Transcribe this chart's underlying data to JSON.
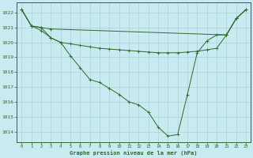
{
  "title": "Graphe pression niveau de la mer (hPa)",
  "bg_color": "#c8eaf0",
  "grid_color": "#a8d4d8",
  "line_color": "#2d6a2d",
  "xlim": [
    -0.5,
    23.5
  ],
  "ylim": [
    1013.3,
    1022.7
  ],
  "yticks": [
    1014,
    1015,
    1016,
    1017,
    1018,
    1019,
    1020,
    1021,
    1022
  ],
  "xticks": [
    0,
    1,
    2,
    3,
    4,
    5,
    6,
    7,
    8,
    9,
    10,
    11,
    12,
    13,
    14,
    15,
    16,
    17,
    18,
    19,
    20,
    21,
    22,
    23
  ],
  "series1": {
    "x": [
      0,
      1,
      2,
      3,
      21,
      22,
      23
    ],
    "y": [
      1022.2,
      1021.1,
      1021.0,
      1020.9,
      1020.5,
      1021.6,
      1022.2
    ]
  },
  "series2": {
    "x": [
      0,
      1,
      2,
      3,
      4,
      5,
      6,
      7,
      8,
      9,
      10,
      11,
      12,
      13,
      14,
      15,
      16,
      17,
      18,
      19,
      20,
      21,
      22,
      23
    ],
    "y": [
      1022.2,
      1021.1,
      1020.8,
      1020.3,
      1020.0,
      1019.9,
      1019.8,
      1019.7,
      1019.6,
      1019.55,
      1019.5,
      1019.45,
      1019.4,
      1019.35,
      1019.3,
      1019.3,
      1019.3,
      1019.35,
      1019.4,
      1019.5,
      1019.6,
      1020.5,
      1021.6,
      1022.2
    ]
  },
  "series3": {
    "x": [
      0,
      1,
      2,
      3,
      4,
      5,
      6,
      7,
      8,
      9,
      10,
      11,
      12,
      13,
      14,
      15,
      16,
      17,
      18,
      19,
      20,
      21,
      22,
      23
    ],
    "y": [
      1022.2,
      1021.1,
      1021.0,
      1020.3,
      1020.0,
      1019.1,
      1018.3,
      1017.5,
      1017.3,
      1016.9,
      1016.5,
      1016.0,
      1015.8,
      1015.3,
      1014.3,
      1013.7,
      1013.8,
      1016.5,
      1019.3,
      1020.1,
      1020.5,
      1020.5,
      1021.6,
      1022.2
    ]
  }
}
